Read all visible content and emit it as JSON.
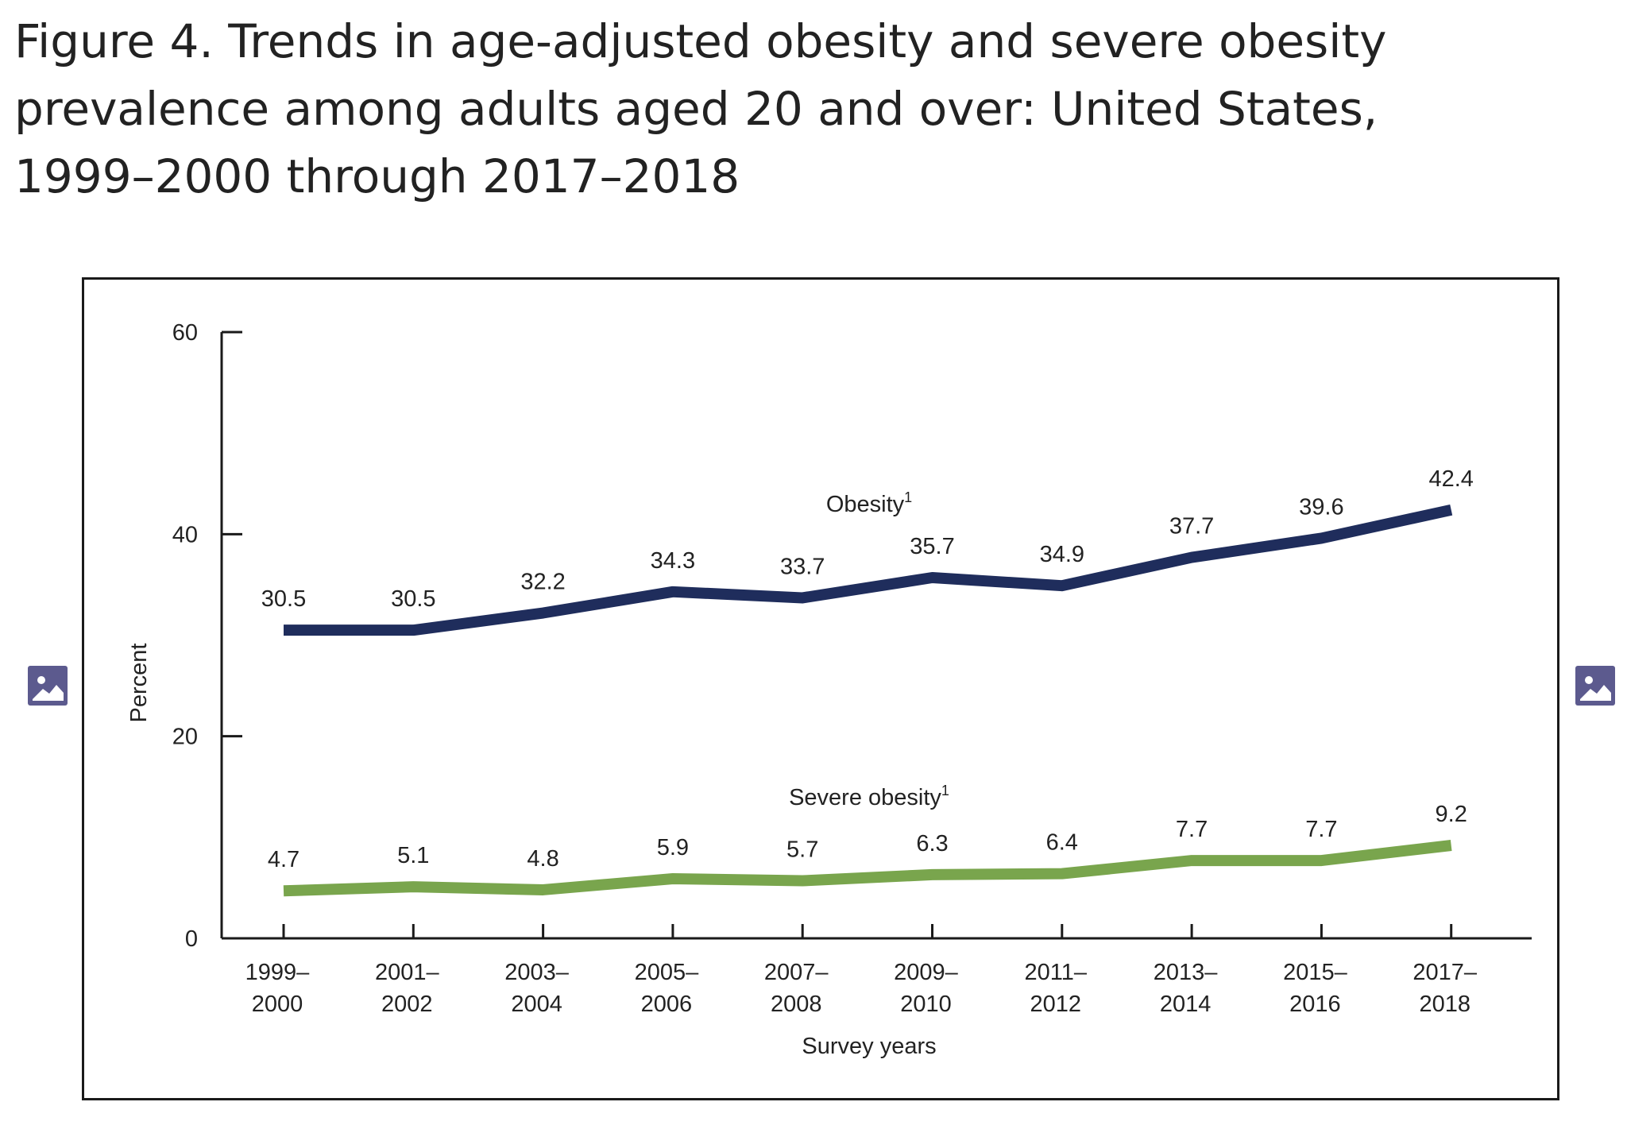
{
  "figure": {
    "title": "Figure 4. Trends in age-adjusted obesity and severe obesity prevalence among adults aged 20 and over: United States, 1999–2000 through 2017–2018"
  },
  "icons": {
    "left": "image-icon",
    "right": "image-icon",
    "color": "#5c5a8e"
  },
  "chart_data": {
    "type": "line",
    "title": "",
    "xlabel": "Survey years",
    "ylabel": "Percent",
    "ylim": [
      0,
      60
    ],
    "yticks": [
      0,
      20,
      40,
      60
    ],
    "grid": false,
    "categories": [
      [
        "1999–",
        "2000"
      ],
      [
        "2001–",
        "2002"
      ],
      [
        "2003–",
        "2004"
      ],
      [
        "2005–",
        "2006"
      ],
      [
        "2007–",
        "2008"
      ],
      [
        "2009–",
        "2010"
      ],
      [
        "2011–",
        "2012"
      ],
      [
        "2013–",
        "2014"
      ],
      [
        "2015–",
        "2016"
      ],
      [
        "2017–",
        "2018"
      ]
    ],
    "series": [
      {
        "name": "Obesity",
        "superscript": "1",
        "color": "#1f2d5c",
        "values": [
          30.5,
          30.5,
          32.2,
          34.3,
          33.7,
          35.7,
          34.9,
          37.7,
          39.6,
          42.4
        ],
        "labels": [
          "30.5",
          "30.5",
          "32.2",
          "34.3",
          "33.7",
          "35.7",
          "34.9",
          "37.7",
          "39.6",
          "42.4"
        ]
      },
      {
        "name": "Severe obesity",
        "superscript": "1",
        "color": "#79a54d",
        "values": [
          4.7,
          5.1,
          4.8,
          5.9,
          5.7,
          6.3,
          6.4,
          7.7,
          7.7,
          9.2
        ],
        "labels": [
          "4.7",
          "5.1",
          "4.8",
          "5.9",
          "5.7",
          "6.3",
          "6.4",
          "7.7",
          "7.7",
          "9.2"
        ]
      }
    ]
  }
}
